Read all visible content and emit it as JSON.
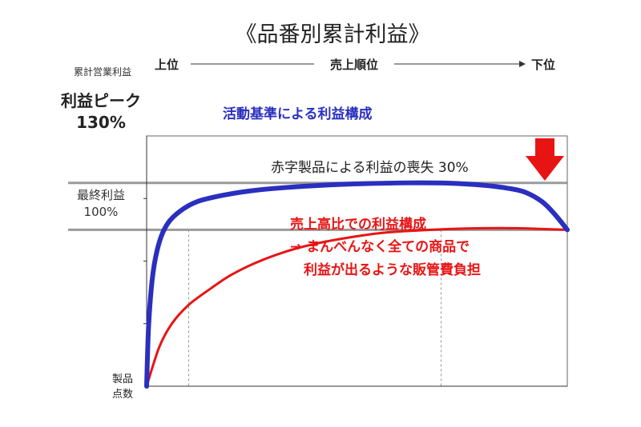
{
  "chart_data": {
    "type": "line",
    "title": "《品番別累計利益》",
    "ylabel": "累計営業利益",
    "xlabel": "製品\n点数",
    "x_axis_top": {
      "left_label": "上位",
      "middle_label": "売上順位",
      "right_label": "下位"
    },
    "y_reference_lines": [
      {
        "name_lines": [
          "利益ピーク",
          "130%"
        ],
        "value": 130
      },
      {
        "name_lines": [
          "最終利益",
          "100%"
        ],
        "value": 100
      }
    ],
    "ylim": [
      0,
      160
    ],
    "xlim": [
      0,
      100
    ],
    "series": [
      {
        "name": "活動基準による利益構成",
        "color": "#2a2fbf",
        "x": [
          0,
          0.5,
          1.5,
          3,
          5,
          8,
          12,
          18,
          25,
          33,
          42,
          52,
          62,
          72,
          80,
          86,
          90,
          94,
          97,
          100
        ],
        "y": [
          0,
          40,
          72,
          92,
          104,
          112,
          118,
          122,
          125,
          127,
          128.5,
          129.5,
          130,
          129.8,
          128.5,
          126.5,
          124,
          118,
          110,
          100
        ]
      },
      {
        "name_lines": [
          "売上高比での利益構成",
          "→ まんべんなく全ての商品で",
          "　利益が出るような販管費負担"
        ],
        "color": "#e81414",
        "x": [
          0,
          3,
          6,
          10,
          15,
          20,
          26,
          33,
          40,
          48,
          56,
          64,
          72,
          80,
          88,
          94,
          100
        ],
        "y": [
          0,
          25,
          40,
          52,
          62,
          71,
          79,
          86,
          91,
          95,
          98,
          99.5,
          100.5,
          101,
          101,
          100.5,
          100
        ]
      }
    ],
    "annotations": {
      "loss_label": "赤字製品による利益の喪失  30%",
      "loss_arrow_color": "#e81414"
    },
    "grid": {
      "y": false,
      "x_dashed_at": [
        10,
        70
      ]
    }
  }
}
